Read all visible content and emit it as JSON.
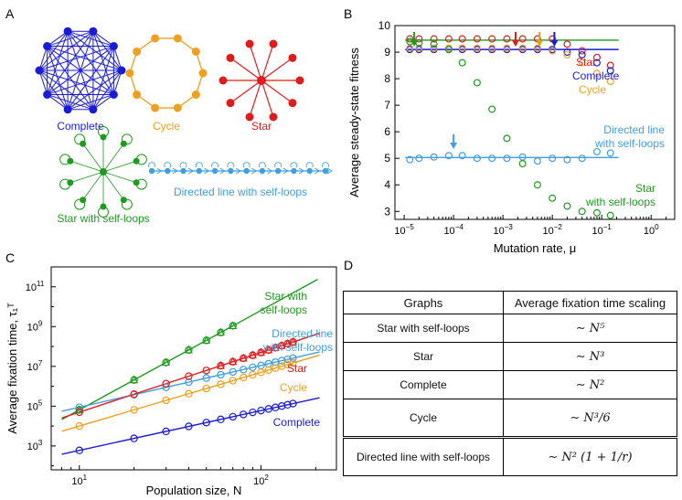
{
  "panels": {
    "a": "A",
    "b": "B",
    "c": "C",
    "d": "D"
  },
  "panel_a": {
    "complete": "Complete",
    "cycle": "Cycle",
    "star": "Star",
    "star_loops": "Star with self-loops",
    "directed_line": "Directed line with self-loops"
  },
  "colors": {
    "complete": "#1b1bd6",
    "cycle": "#f0a020",
    "star": "#e01b1b",
    "star_loops": "#1e9a1e",
    "directed_line": "#3f9fe0"
  },
  "chart_data": [
    {
      "type": "scatter",
      "panel": "B",
      "xlabel": "Mutation rate, μ",
      "ylabel": "Average steady-state fitness",
      "xscale": "log",
      "xlim": [
        6.5e-06,
        3
      ],
      "ylim": [
        2.7,
        10.0
      ],
      "xtick_exponents": [
        -5,
        -4,
        -3,
        -2,
        -1,
        0
      ],
      "yticks": [
        3,
        4,
        5,
        6,
        7,
        8,
        9,
        10
      ],
      "x": [
        1.3e-05,
        2e-05,
        4e-05,
        8e-05,
        0.00015,
        0.0003,
        0.0006,
        0.0012,
        0.0025,
        0.005,
        0.01,
        0.02,
        0.04,
        0.08,
        0.15
      ],
      "series": [
        {
          "name": "Star",
          "color_key": "star",
          "values": [
            9.5,
            9.5,
            9.5,
            9.5,
            9.5,
            9.5,
            9.5,
            9.5,
            9.5,
            9.5,
            9.5,
            9.3,
            9.05,
            8.8,
            8.5
          ]
        },
        {
          "name": "Complete",
          "color_key": "complete",
          "values": [
            9.1,
            9.1,
            9.1,
            9.1,
            9.1,
            9.1,
            9.1,
            9.1,
            9.1,
            9.1,
            9.1,
            9.0,
            8.9,
            8.6,
            8.3
          ]
        },
        {
          "name": "Cycle",
          "color_key": "cycle",
          "values": [
            9.15,
            9.15,
            9.15,
            9.15,
            9.15,
            9.15,
            9.15,
            9.15,
            9.15,
            9.15,
            9.05,
            8.9,
            8.6,
            8.2,
            7.9
          ]
        },
        {
          "name": "Directed line with self-loops",
          "color_key": "directed_line",
          "values": [
            4.95,
            5.0,
            5.05,
            5.1,
            5.1,
            5.0,
            5.0,
            5.0,
            5.05,
            4.9,
            5.0,
            4.95,
            5.0,
            5.25,
            5.2
          ]
        },
        {
          "name": "Star with self-loops",
          "color_key": "star_loops",
          "values": [
            9.4,
            9.35,
            9.3,
            9.1,
            8.6,
            7.85,
            6.85,
            5.75,
            4.8,
            4.0,
            3.5,
            3.2,
            3.0,
            2.95,
            2.85
          ]
        }
      ],
      "reference_lines": [
        {
          "color_key": "star_loops",
          "y": 9.45
        },
        {
          "color_key": "complete",
          "y": 9.1
        },
        {
          "color_key": "directed_line",
          "y": 5.03
        }
      ],
      "arrows": [
        {
          "color_key": "star_loops",
          "x": 1.6e-05
        },
        {
          "color_key": "directed_line",
          "x": 0.0001
        },
        {
          "color_key": "star",
          "x": 0.0018
        },
        {
          "color_key": "cycle",
          "x": 0.0055
        },
        {
          "color_key": "complete",
          "x": 0.011
        }
      ],
      "legend": {
        "star": "Star",
        "complete": "Complete",
        "cycle": "Cycle",
        "directed_line": "Directed line\nwith self-loops",
        "star_loops": "Star\nwith self-loops"
      }
    },
    {
      "type": "scatter",
      "panel": "C",
      "xlabel": "Population size, N",
      "ylabel": "Average fixation time, τ₁ᵀ",
      "xscale": "log",
      "yscale": "log",
      "xlim": [
        7,
        260
      ],
      "ylim_exp": [
        1.8,
        12.0
      ],
      "ytick_exponents": [
        3,
        5,
        7,
        9,
        11
      ],
      "xtick_exponents": [
        1,
        2
      ],
      "series": [
        {
          "name": "Star with self-loops",
          "color_key": "star_loops",
          "exponent": 5,
          "coef": 0.65,
          "x": [
            10,
            20,
            30,
            40,
            50,
            60,
            70
          ]
        },
        {
          "name": "Directed line with self-loops",
          "color_key": "directed_line",
          "exponent": 2.1,
          "coef": 700,
          "x": [
            10,
            20,
            30,
            40,
            50,
            60,
            70,
            80,
            90,
            100,
            110,
            120,
            130,
            140,
            150
          ]
        },
        {
          "name": "Star",
          "color_key": "star",
          "exponent": 3,
          "coef": 50,
          "x": [
            10,
            20,
            30,
            40,
            50,
            60,
            70,
            80,
            90,
            100,
            110,
            120,
            130,
            140,
            150
          ]
        },
        {
          "name": "Cycle",
          "color_key": "cycle",
          "exponent": 2.7,
          "coef": 20,
          "x": [
            10,
            20,
            30,
            40,
            50,
            60,
            70,
            80,
            90,
            100,
            110,
            120,
            130,
            140,
            150
          ]
        },
        {
          "name": "Complete",
          "color_key": "complete",
          "exponent": 2,
          "coef": 6,
          "x": [
            10,
            20,
            30,
            40,
            50,
            60,
            70,
            80,
            90,
            100,
            110,
            120,
            130,
            140,
            150
          ]
        }
      ],
      "legend": {
        "star_loops": "Star with\nself-loops",
        "directed_line": "Directed line\nwith self-loops",
        "star": "Star",
        "cycle": "Cycle",
        "complete": "Complete"
      }
    }
  ],
  "table": {
    "header": [
      "Graphs",
      "Average fixation time scaling"
    ],
    "rows": [
      {
        "graph": "Star with self-loops",
        "scaling": "∼ N⁵"
      },
      {
        "graph": "Star",
        "scaling": "∼ N³"
      },
      {
        "graph": "Complete",
        "scaling": "∼ N²"
      },
      {
        "graph": "Cycle",
        "scaling": "∼ N³/6"
      },
      {
        "graph": "Directed line with self-loops",
        "scaling": "∼ N² (1 + 1/r)"
      }
    ]
  }
}
